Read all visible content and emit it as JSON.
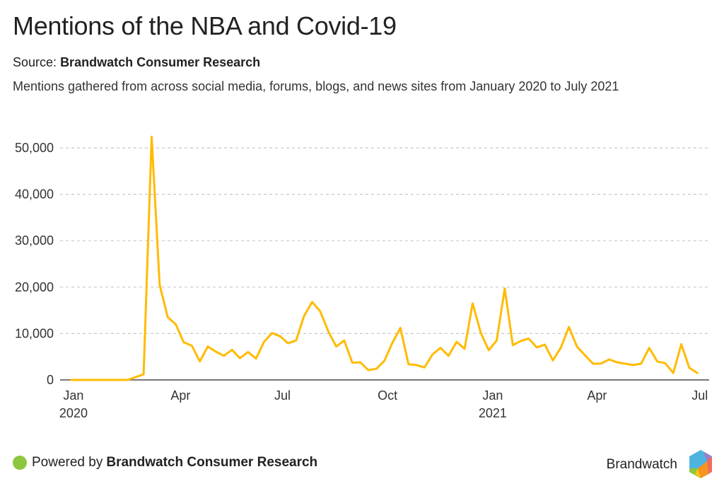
{
  "header": {
    "title": "Mentions of the NBA and Covid-19",
    "source_prefix": "Source:",
    "source_name": "Brandwatch Consumer Research",
    "subtitle": "Mentions gathered from across social media, forums, blogs, and news sites from January 2020 to July 2021"
  },
  "footer": {
    "powered_prefix": "Powered by",
    "powered_name": "Brandwatch Consumer Research",
    "brand": "Brandwatch",
    "dot_color": "#8dc63f"
  },
  "chart_data": {
    "type": "line",
    "title": "Mentions of the NBA and Covid-19",
    "xlabel": "",
    "ylabel": "",
    "x_interval": "weekly",
    "x_start": "Jan 2020",
    "x_end": "Jul 2021",
    "ylim": [
      0,
      50000
    ],
    "yticks": [
      0,
      10000,
      20000,
      30000,
      40000,
      50000
    ],
    "ytick_labels": [
      "0",
      "10,000",
      "20,000",
      "30,000",
      "40,000",
      "50,000"
    ],
    "xticks": [
      {
        "label": "Jan",
        "sublabel": "2020",
        "pos": 0.26
      },
      {
        "label": "Apr",
        "sublabel": "",
        "pos": 13.6
      },
      {
        "label": "Jul",
        "sublabel": "",
        "pos": 26.3
      },
      {
        "label": "Oct",
        "sublabel": "",
        "pos": 39.4
      },
      {
        "label": "Jan",
        "sublabel": "2021",
        "pos": 52.5
      },
      {
        "label": "Apr",
        "sublabel": "",
        "pos": 65.5
      },
      {
        "label": "Jul",
        "sublabel": "",
        "pos": 78.3
      }
    ],
    "grid": true,
    "legend": "none",
    "series": [
      {
        "name": "Mentions",
        "color": "#ffbb00",
        "values": [
          0,
          0,
          0,
          0,
          0,
          0,
          0,
          0,
          600,
          1200,
          52400,
          20500,
          13500,
          12000,
          8100,
          7400,
          4000,
          7200,
          6100,
          5200,
          6500,
          4700,
          6000,
          4600,
          8200,
          10100,
          9400,
          7900,
          8500,
          13800,
          16800,
          14800,
          10500,
          7200,
          8500,
          3700,
          3800,
          2100,
          2400,
          4100,
          8000,
          11200,
          3400,
          3200,
          2700,
          5500,
          6900,
          5200,
          8200,
          6700,
          16500,
          10200,
          6400,
          8500,
          19700,
          7500,
          8400,
          8900,
          7000,
          7600,
          4200,
          7000,
          11400,
          7200,
          5300,
          3500,
          3500,
          4400,
          3800,
          3500,
          3200,
          3500,
          6900,
          4000,
          3600,
          1500,
          7700,
          2600,
          1500
        ]
      }
    ]
  }
}
